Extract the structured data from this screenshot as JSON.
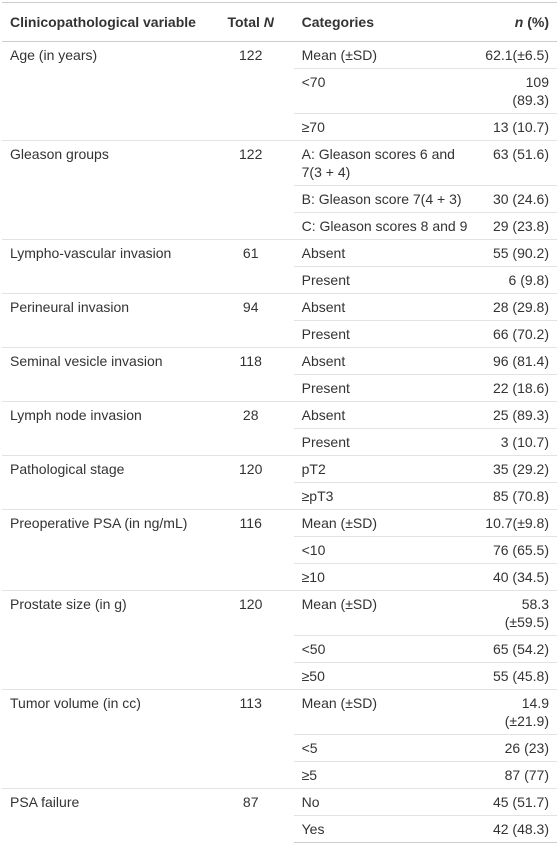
{
  "table": {
    "header": {
      "variable": "Clinicopathological variable",
      "total": [
        "Total",
        "N"
      ],
      "category": "Categories",
      "n_pct": [
        "n",
        "(%)"
      ]
    },
    "groups": [
      {
        "variable": "Age (in years)",
        "total": 122,
        "rows": [
          {
            "category": "Mean (±SD)",
            "n_pct": "62.1(±6.5)"
          },
          {
            "category": "<70",
            "n_pct": "109 (89.3)"
          },
          {
            "category": "≥70",
            "n_pct": "13 (10.7)"
          }
        ]
      },
      {
        "variable": "Gleason groups",
        "total": 122,
        "rows": [
          {
            "category": "A: Gleason scores 6 and 7(3 + 4)",
            "n_pct": "63 (51.6)"
          },
          {
            "category": "B: Gleason score 7(4 + 3)",
            "n_pct": "30 (24.6)"
          },
          {
            "category": "C: Gleason scores 8 and 9",
            "n_pct": "29 (23.8)"
          }
        ]
      },
      {
        "variable": "Lympho-vascular invasion",
        "total": 61,
        "rows": [
          {
            "category": "Absent",
            "n_pct": "55 (90.2)"
          },
          {
            "category": "Present",
            "n_pct": "6 (9.8)"
          }
        ]
      },
      {
        "variable": "Perineural invasion",
        "total": 94,
        "rows": [
          {
            "category": "Absent",
            "n_pct": "28 (29.8)"
          },
          {
            "category": "Present",
            "n_pct": "66 (70.2)"
          }
        ]
      },
      {
        "variable": "Seminal vesicle invasion",
        "total": 118,
        "rows": [
          {
            "category": "Absent",
            "n_pct": "96 (81.4)"
          },
          {
            "category": "Present",
            "n_pct": "22 (18.6)"
          }
        ]
      },
      {
        "variable": "Lymph node invasion",
        "total": 28,
        "rows": [
          {
            "category": "Absent",
            "n_pct": "25 (89.3)"
          },
          {
            "category": "Present",
            "n_pct": "3 (10.7)"
          }
        ]
      },
      {
        "variable": "Pathological stage",
        "total": 120,
        "rows": [
          {
            "category": "pT2",
            "n_pct": "35 (29.2)"
          },
          {
            "category": "≥pT3",
            "n_pct": "85 (70.8)"
          }
        ]
      },
      {
        "variable": "Preoperative PSA (in ng/mL)",
        "total": 116,
        "rows": [
          {
            "category": "Mean (±SD)",
            "n_pct": "10.7(±9.8)"
          },
          {
            "category": "<10",
            "n_pct": "76 (65.5)"
          },
          {
            "category": "≥10",
            "n_pct": "40 (34.5)"
          }
        ]
      },
      {
        "variable": "Prostate size (in g)",
        "total": 120,
        "rows": [
          {
            "category": "Mean (±SD)",
            "n_pct": "58.3 (±59.5)"
          },
          {
            "category": "<50",
            "n_pct": "65 (54.2)"
          },
          {
            "category": "≥50",
            "n_pct": "55 (45.8)"
          }
        ]
      },
      {
        "variable": "Tumor volume (in cc)",
        "total": 113,
        "rows": [
          {
            "category": "Mean (±SD)",
            "n_pct": "14.9 (±21.9)"
          },
          {
            "category": "<5",
            "n_pct": "26 (23)"
          },
          {
            "category": "≥5",
            "n_pct": "87 (77)"
          }
        ]
      },
      {
        "variable": "PSA failure",
        "total": 87,
        "rows": [
          {
            "category": "No",
            "n_pct": "45 (51.7)"
          },
          {
            "category": "Yes",
            "n_pct": "42 (48.3)"
          }
        ]
      }
    ]
  }
}
